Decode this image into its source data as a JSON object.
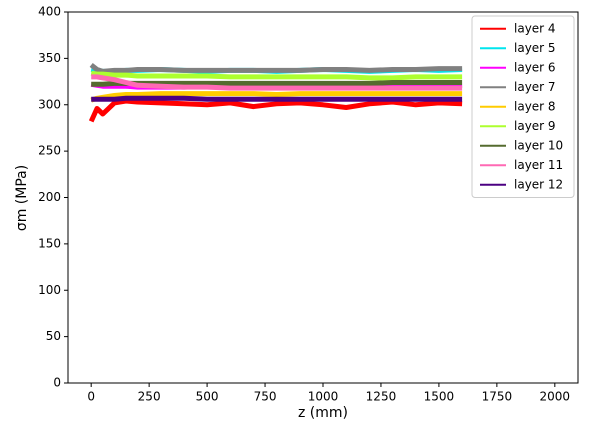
{
  "chart_data": {
    "type": "line",
    "x_label": "z (mm)",
    "y_label": "σm (MPa)",
    "x": [
      0,
      25,
      50,
      100,
      150,
      200,
      300,
      400,
      500,
      600,
      700,
      800,
      900,
      1000,
      1100,
      1200,
      1300,
      1400,
      1500,
      1600
    ],
    "series": [
      {
        "name": "layer 4",
        "color": "#ff0000",
        "values": [
          282,
          296,
          290,
          302,
          304,
          303,
          302,
          301,
          300,
          302,
          298,
          301,
          302,
          300,
          297,
          301,
          303,
          300,
          302,
          301
        ]
      },
      {
        "name": "layer 5",
        "color": "#00e5ee",
        "values": [
          338,
          337,
          336,
          336,
          337,
          337,
          338,
          337,
          336,
          337,
          337,
          336,
          337,
          338,
          337,
          336,
          337,
          338,
          337,
          338
        ]
      },
      {
        "name": "layer 6",
        "color": "#ff00ff",
        "values": [
          322,
          321,
          320,
          320,
          320,
          319,
          319,
          319,
          320,
          320,
          319,
          319,
          320,
          320,
          319,
          319,
          320,
          320,
          320,
          321
        ]
      },
      {
        "name": "layer 7",
        "color": "#808080",
        "values": [
          343,
          338,
          336,
          337,
          337,
          338,
          338,
          337,
          337,
          337,
          337,
          337,
          337,
          338,
          338,
          337,
          338,
          338,
          339,
          339
        ]
      },
      {
        "name": "layer 8",
        "color": "#ffcc00",
        "values": [
          305,
          307,
          308,
          310,
          311,
          311,
          312,
          312,
          312,
          312,
          312,
          311,
          312,
          312,
          312,
          312,
          312,
          312,
          312,
          312
        ]
      },
      {
        "name": "layer 9",
        "color": "#adff2f",
        "values": [
          334,
          333,
          333,
          332,
          332,
          331,
          331,
          331,
          331,
          330,
          330,
          330,
          330,
          330,
          330,
          329,
          329,
          330,
          330,
          330
        ]
      },
      {
        "name": "layer 10",
        "color": "#556b2f",
        "values": [
          322,
          322,
          322,
          323,
          323,
          323,
          323,
          323,
          323,
          323,
          323,
          323,
          323,
          323,
          323,
          323,
          324,
          324,
          324,
          324
        ]
      },
      {
        "name": "layer 11",
        "color": "#ff69b4",
        "values": [
          330,
          330,
          329,
          327,
          324,
          321,
          320,
          319,
          319,
          318,
          318,
          318,
          318,
          318,
          318,
          318,
          318,
          318,
          318,
          318
        ]
      },
      {
        "name": "layer 12",
        "color": "#4b0082",
        "values": [
          306,
          306,
          306,
          306,
          307,
          307,
          307,
          307,
          306,
          306,
          306,
          306,
          306,
          306,
          306,
          306,
          306,
          306,
          306,
          306
        ]
      }
    ],
    "xlim": [
      -100,
      2100
    ],
    "ylim": [
      0,
      400
    ],
    "xticks": [
      0,
      250,
      500,
      750,
      1000,
      1250,
      1500,
      1750,
      2000
    ],
    "yticks": [
      0,
      50,
      100,
      150,
      200,
      250,
      300,
      350,
      400
    ],
    "legend": "upper right",
    "grid": false
  }
}
